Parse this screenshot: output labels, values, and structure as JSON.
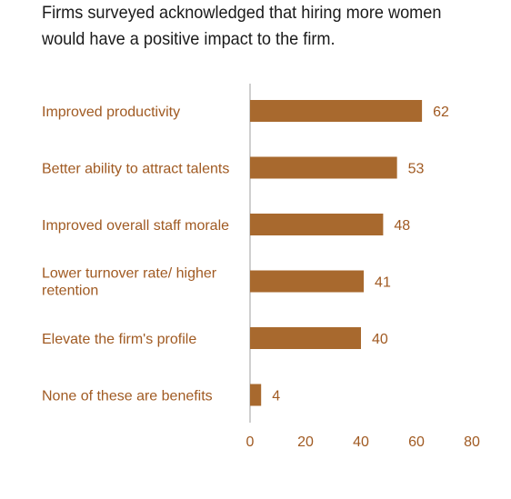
{
  "chart_data": {
    "type": "bar",
    "orientation": "horizontal",
    "title": "Firms surveyed acknowledged that hiring more women would have a positive impact to the firm.",
    "categories": [
      [
        "Improved productivity"
      ],
      [
        "Better ability to attract talents"
      ],
      [
        "Improved overall staff morale"
      ],
      [
        "Lower turnover rate/ higher",
        "retention"
      ],
      [
        "Elevate the firm's profile"
      ],
      [
        "None of these are benefits"
      ]
    ],
    "values": [
      62,
      53,
      48,
      41,
      40,
      4
    ],
    "xticks": [
      "0",
      "20",
      "40",
      "60",
      "80"
    ],
    "xlim": [
      0,
      80
    ],
    "grid": false,
    "bar_color": "#a8692e",
    "label_color": "#a05a22",
    "axis_color": "#b5b5b5"
  }
}
